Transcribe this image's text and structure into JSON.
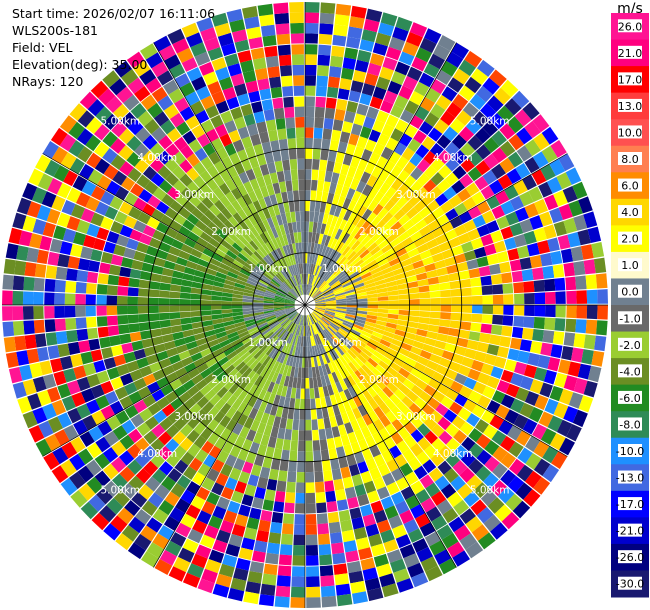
{
  "header": {
    "start_time": "Start time: 2026/02/07 16:11:06",
    "instrument": "WLS200s-181",
    "field": "Field: VEL",
    "elevation": "Elevation(deg): 35.00",
    "nrays": "NRays: 120"
  },
  "colorbar": {
    "unit": "m/s",
    "levels": [
      {
        "label": "26.0",
        "color": "#ff1493"
      },
      {
        "label": "21.0",
        "color": "#ff007f"
      },
      {
        "label": "17.0",
        "color": "#ff0000"
      },
      {
        "label": "13.0",
        "color": "#ff3c3c"
      },
      {
        "label": "10.0",
        "color": "#ff5050"
      },
      {
        "label": "8.0",
        "color": "#ff7f50"
      },
      {
        "label": "6.0",
        "color": "#ff8c00"
      },
      {
        "label": "4.0",
        "color": "#ffd700"
      },
      {
        "label": "2.0",
        "color": "#ffff00"
      },
      {
        "label": "1.0",
        "color": "#fffacd"
      },
      {
        "label": "0.0",
        "color": "#708090"
      },
      {
        "label": "-1.0",
        "color": "#696969"
      },
      {
        "label": "-2.0",
        "color": "#9acd32"
      },
      {
        "label": "-4.0",
        "color": "#6b8e23"
      },
      {
        "label": "-6.0",
        "color": "#228b22"
      },
      {
        "label": "-8.0",
        "color": "#2e8b57"
      },
      {
        "label": "-10.0",
        "color": "#1e90ff"
      },
      {
        "label": "-13.0",
        "color": "#4169e1"
      },
      {
        "label": "-17.0",
        "color": "#0000ff"
      },
      {
        "label": "-21.0",
        "color": "#0000cd"
      },
      {
        "label": "-26.0",
        "color": "#000080"
      },
      {
        "label": "-30.0",
        "color": "#191970"
      }
    ]
  },
  "chart_data": {
    "type": "heatmap",
    "projection": "polar-ppi",
    "field": "VEL",
    "nrays": 120,
    "range_ring_labels_km": [
      "1.00km",
      "2.00km",
      "3.00km",
      "4.00km",
      "5.00km"
    ],
    "range_rings_km": [
      1,
      2,
      3,
      4,
      5
    ],
    "value_range": [
      -30,
      26
    ]
  }
}
